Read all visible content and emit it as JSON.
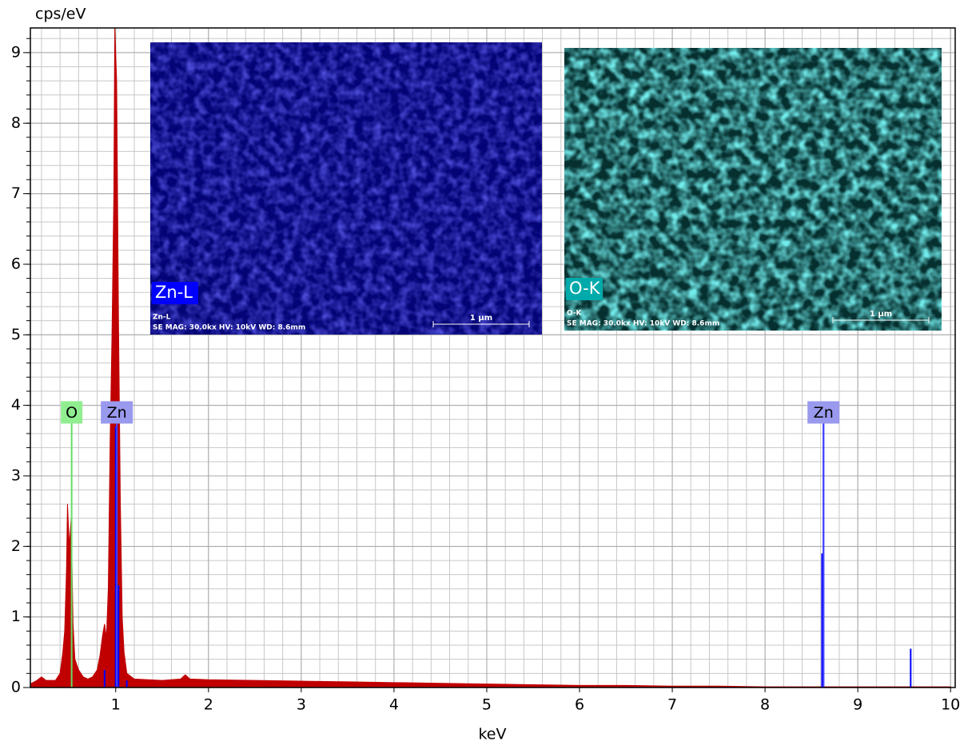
{
  "chart_data": {
    "type": "area",
    "ylabel": "cps/eV",
    "xlabel": "keV",
    "xlim": [
      0.08,
      10.05
    ],
    "ylim": [
      0,
      9.35
    ],
    "xticks": [
      1,
      2,
      3,
      4,
      5,
      6,
      7,
      8,
      9,
      10
    ],
    "yticks": [
      0,
      1,
      2,
      3,
      4,
      5,
      6,
      7,
      8,
      9
    ],
    "grid": true,
    "color": "#c00000",
    "x": [
      0.08,
      0.15,
      0.2,
      0.25,
      0.3,
      0.35,
      0.4,
      0.43,
      0.45,
      0.47,
      0.48,
      0.5,
      0.52,
      0.54,
      0.56,
      0.6,
      0.65,
      0.7,
      0.75,
      0.8,
      0.83,
      0.86,
      0.88,
      0.9,
      0.92,
      0.94,
      0.96,
      0.98,
      0.99,
      1.01,
      1.03,
      1.05,
      1.07,
      1.09,
      1.12,
      1.2,
      1.5,
      1.7,
      1.75,
      1.8,
      2.0,
      2.5,
      3.0,
      3.5,
      4.0,
      4.5,
      5.0,
      5.5,
      6.0,
      6.5,
      7.0,
      7.5,
      8.0,
      9.0,
      10.0
    ],
    "values": [
      0.05,
      0.1,
      0.15,
      0.1,
      0.1,
      0.1,
      0.2,
      0.5,
      0.8,
      1.7,
      2.6,
      2.0,
      2.4,
      0.9,
      0.4,
      0.25,
      0.15,
      0.12,
      0.15,
      0.25,
      0.45,
      0.75,
      0.9,
      0.7,
      1.4,
      3.5,
      5.0,
      7.0,
      9.35,
      8.6,
      5.2,
      2.6,
      1.0,
      0.5,
      0.2,
      0.12,
      0.1,
      0.12,
      0.18,
      0.12,
      0.11,
      0.1,
      0.09,
      0.08,
      0.07,
      0.06,
      0.05,
      0.04,
      0.03,
      0.03,
      0.02,
      0.02,
      0.01,
      0.01,
      0.01
    ],
    "element_lines": {
      "color": "#0000ff",
      "x": [
        0.88,
        1.0,
        1.03,
        1.12,
        8.615,
        8.63,
        9.57
      ],
      "values": [
        0.25,
        3.7,
        1.45,
        0.1,
        1.9,
        3.8,
        0.55
      ]
    },
    "markers": [
      {
        "label": "O",
        "x": 0.525,
        "line_color": "#66dd66",
        "box_color": "#90ee90"
      },
      {
        "label": "Zn",
        "x": 1.012,
        "line_color": "#4444ff",
        "box_color": "#9999ee"
      },
      {
        "label": "Zn",
        "x": 8.63,
        "line_color": "#4444ff",
        "box_color": "#9999ee"
      }
    ],
    "insets": [
      {
        "label": "Zn-L",
        "label_bg": "#0000ff",
        "tint": "#2020d0",
        "base": "#00006a",
        "caption": "Zn-L",
        "info": "SE  MAG: 30.0kx  HV: 10kV  WD: 8.6mm",
        "scale": "1 µm"
      },
      {
        "label": "O-K",
        "label_bg": "#00aaaa",
        "tint": "#30e0e0",
        "base": "#001818",
        "caption": "O-K",
        "info": "SE  MAG: 30.0kx  HV: 10kV  WD: 8.6mm",
        "scale": "1 µm"
      }
    ]
  }
}
